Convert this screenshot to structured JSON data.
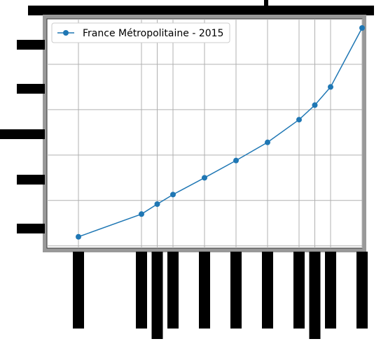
{
  "chart_data": {
    "type": "line",
    "title": "",
    "xlabel": "",
    "ylabel": "",
    "grid": true,
    "legend_placement": "upper-left",
    "series": [
      {
        "name": "France Métropolitaine - 2015",
        "color": "#1f77b4",
        "marker": "circle",
        "x": [
          1,
          3,
          3.5,
          4,
          5,
          6,
          7,
          8,
          8.5,
          9,
          10
        ],
        "y": [
          0.2,
          0.7,
          0.92,
          1.13,
          1.5,
          1.88,
          2.28,
          2.78,
          3.1,
          3.5,
          4.8
        ]
      }
    ],
    "xlim": [
      0,
      10
    ],
    "ylim": [
      -0.05,
      5.0
    ]
  }
}
